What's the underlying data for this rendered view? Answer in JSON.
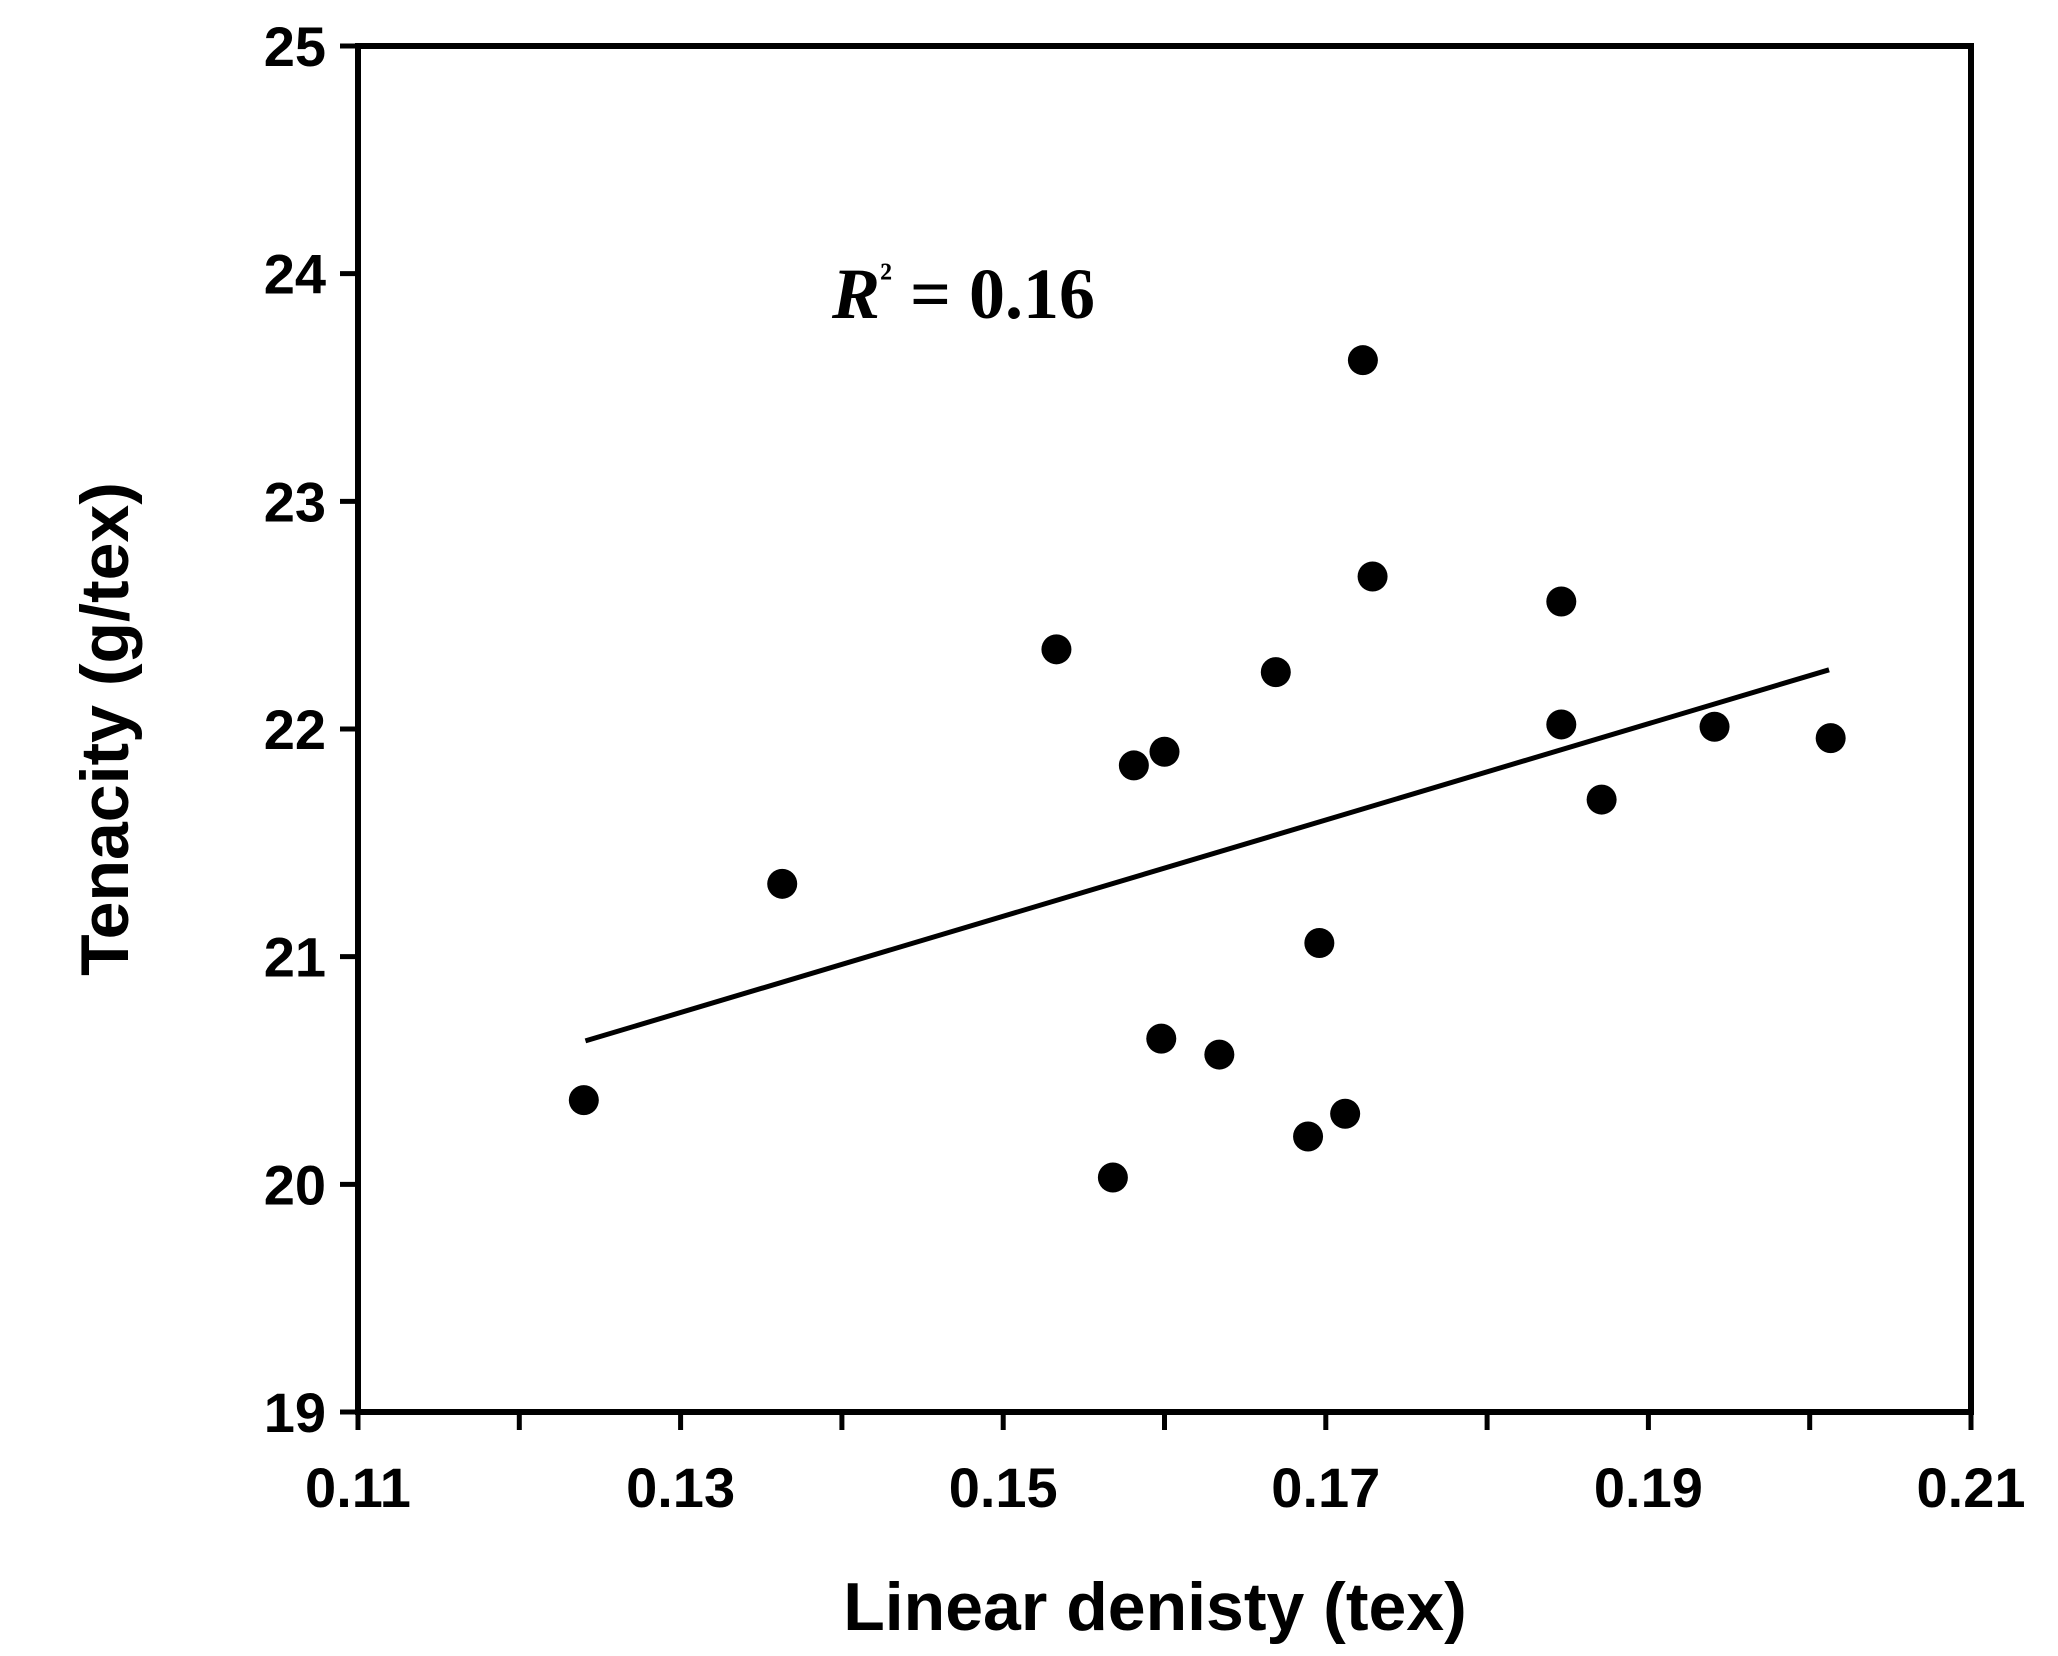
{
  "chart_data": {
    "type": "scatter",
    "xlabel": "Linear denisty (tex)",
    "ylabel": "Tenacity (g/tex)",
    "xlim": [
      0.11,
      0.21
    ],
    "ylim": [
      19,
      25
    ],
    "x_ticks": [
      "0.11",
      "0.13",
      "0.15",
      "0.17",
      "0.19",
      "0.21"
    ],
    "y_ticks": [
      "19",
      "20",
      "21",
      "22",
      "23",
      "24",
      "25"
    ],
    "annotation": {
      "r_symbol": "R",
      "r_superscript": "²",
      "text": " = 0.16"
    },
    "trendline": {
      "x": [
        0.1241,
        0.2012
      ],
      "y": [
        20.63,
        22.26
      ]
    },
    "points": [
      {
        "x": 0.124,
        "y": 20.37
      },
      {
        "x": 0.1363,
        "y": 21.32
      },
      {
        "x": 0.1533,
        "y": 22.35
      },
      {
        "x": 0.1568,
        "y": 20.03
      },
      {
        "x": 0.1581,
        "y": 21.84
      },
      {
        "x": 0.1598,
        "y": 20.64
      },
      {
        "x": 0.16,
        "y": 21.9
      },
      {
        "x": 0.1634,
        "y": 20.57
      },
      {
        "x": 0.1669,
        "y": 22.25
      },
      {
        "x": 0.1689,
        "y": 20.21
      },
      {
        "x": 0.1696,
        "y": 21.06
      },
      {
        "x": 0.1712,
        "y": 20.31
      },
      {
        "x": 0.1723,
        "y": 23.62
      },
      {
        "x": 0.1729,
        "y": 22.67
      },
      {
        "x": 0.1846,
        "y": 22.56
      },
      {
        "x": 0.1846,
        "y": 22.02
      },
      {
        "x": 0.1871,
        "y": 21.69
      },
      {
        "x": 0.1941,
        "y": 22.01
      },
      {
        "x": 0.2013,
        "y": 21.96
      }
    ]
  }
}
